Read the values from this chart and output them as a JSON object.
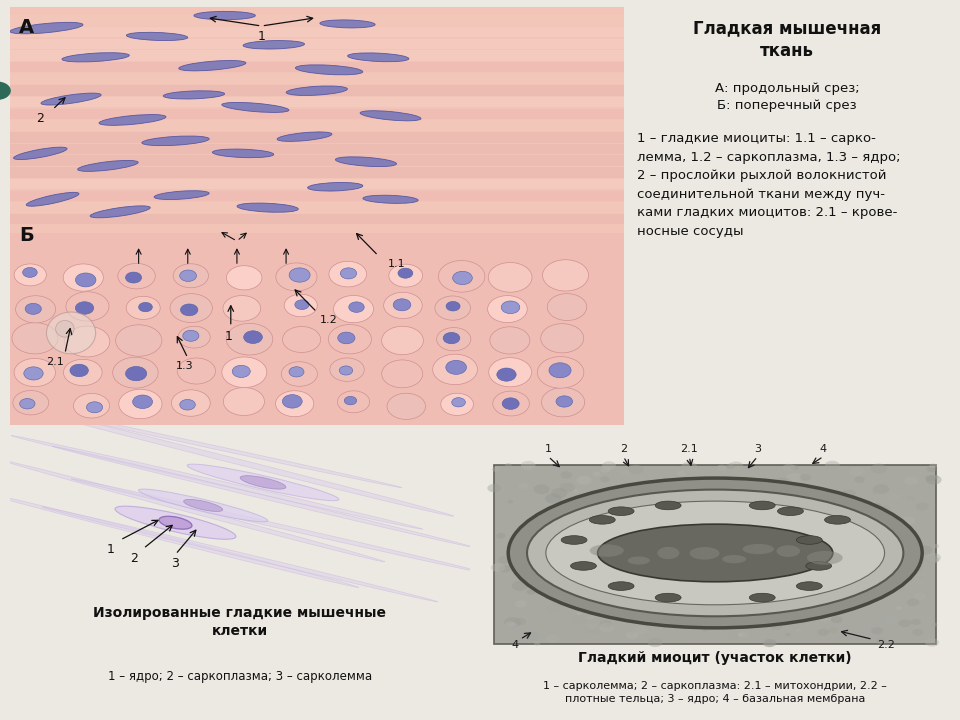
{
  "bg_color": "#f0ede8",
  "title_text": "Гладкая мышечная\nткань",
  "subtitle_text": "А: продольный срез;\nБ: поперечный срез",
  "legend_text": "1 – гладкие миоциты: 1.1 – сарко-\nлемма, 1.2 – саркоплазма, 1.3 – ядро;\n2 – прослойки рыхлой волокнистой\nсоединительной ткани между пуч-\nками гладких миоцитов: 2.1 – крове-\nносные сосуды",
  "isolated_title": "Изолированные гладкие мышечные\nклетки",
  "isolated_legend": "1 – ядро; 2 – саркоплазма; 3 – сарколемма",
  "myocyte_title": "Гладкий миоцит (участок клетки)",
  "myocyte_legend": "1 – сарколемма; 2 – саркоплазма: 2.1 – митохондрии, 2.2 –\nплотные тельца; 3 – ядро; 4 – базальная мембрана",
  "label_A": "А",
  "label_B": "Б",
  "text_color": "#1a1a1a",
  "arrow_color": "#1a1a1a",
  "teal_circle_color": "#2d6b58"
}
